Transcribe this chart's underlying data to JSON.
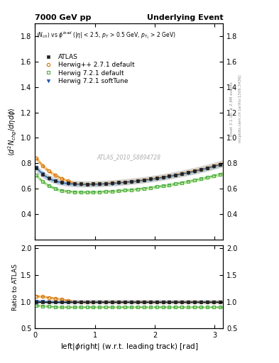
{
  "title_left": "7000 GeV pp",
  "title_right": "Underlying Event",
  "watermark": "ATLAS_2010_S8894728",
  "right_label_top": "Rivet 3.1.10, ≥ 2.8M events",
  "right_label_bottom": "mcplots.cern.ch [arXiv:1306.3436]",
  "ylabel_main": "⟨d² N_{chg}/dηdϕ⟩",
  "ylabel_ratio": "Ratio to ATLAS",
  "xlabel": "left|ϕright| (w.r.t. leading track) [rad]",
  "ylim_main": [
    0.2,
    1.9
  ],
  "ylim_ratio": [
    0.5,
    2.05
  ],
  "yticks_main": [
    0.4,
    0.6,
    0.8,
    1.0,
    1.2,
    1.4,
    1.6,
    1.8
  ],
  "yticks_ratio": [
    0.5,
    1.0,
    1.5,
    2.0
  ],
  "xlim": [
    0,
    3.14159
  ],
  "xticks": [
    0,
    1,
    2,
    3
  ],
  "n_points": 60,
  "atlas_color": "#222222",
  "herwig_pp_color": "#d4720a",
  "herwig721d_color": "#4aaa4a",
  "herwig721s_color": "#2255aa",
  "band_color_atlas": "#bbbbbb",
  "band_color_pp": "#f5c87a",
  "band_color_721d": "#b8e88a",
  "band_color_721s": "#88b8e0"
}
